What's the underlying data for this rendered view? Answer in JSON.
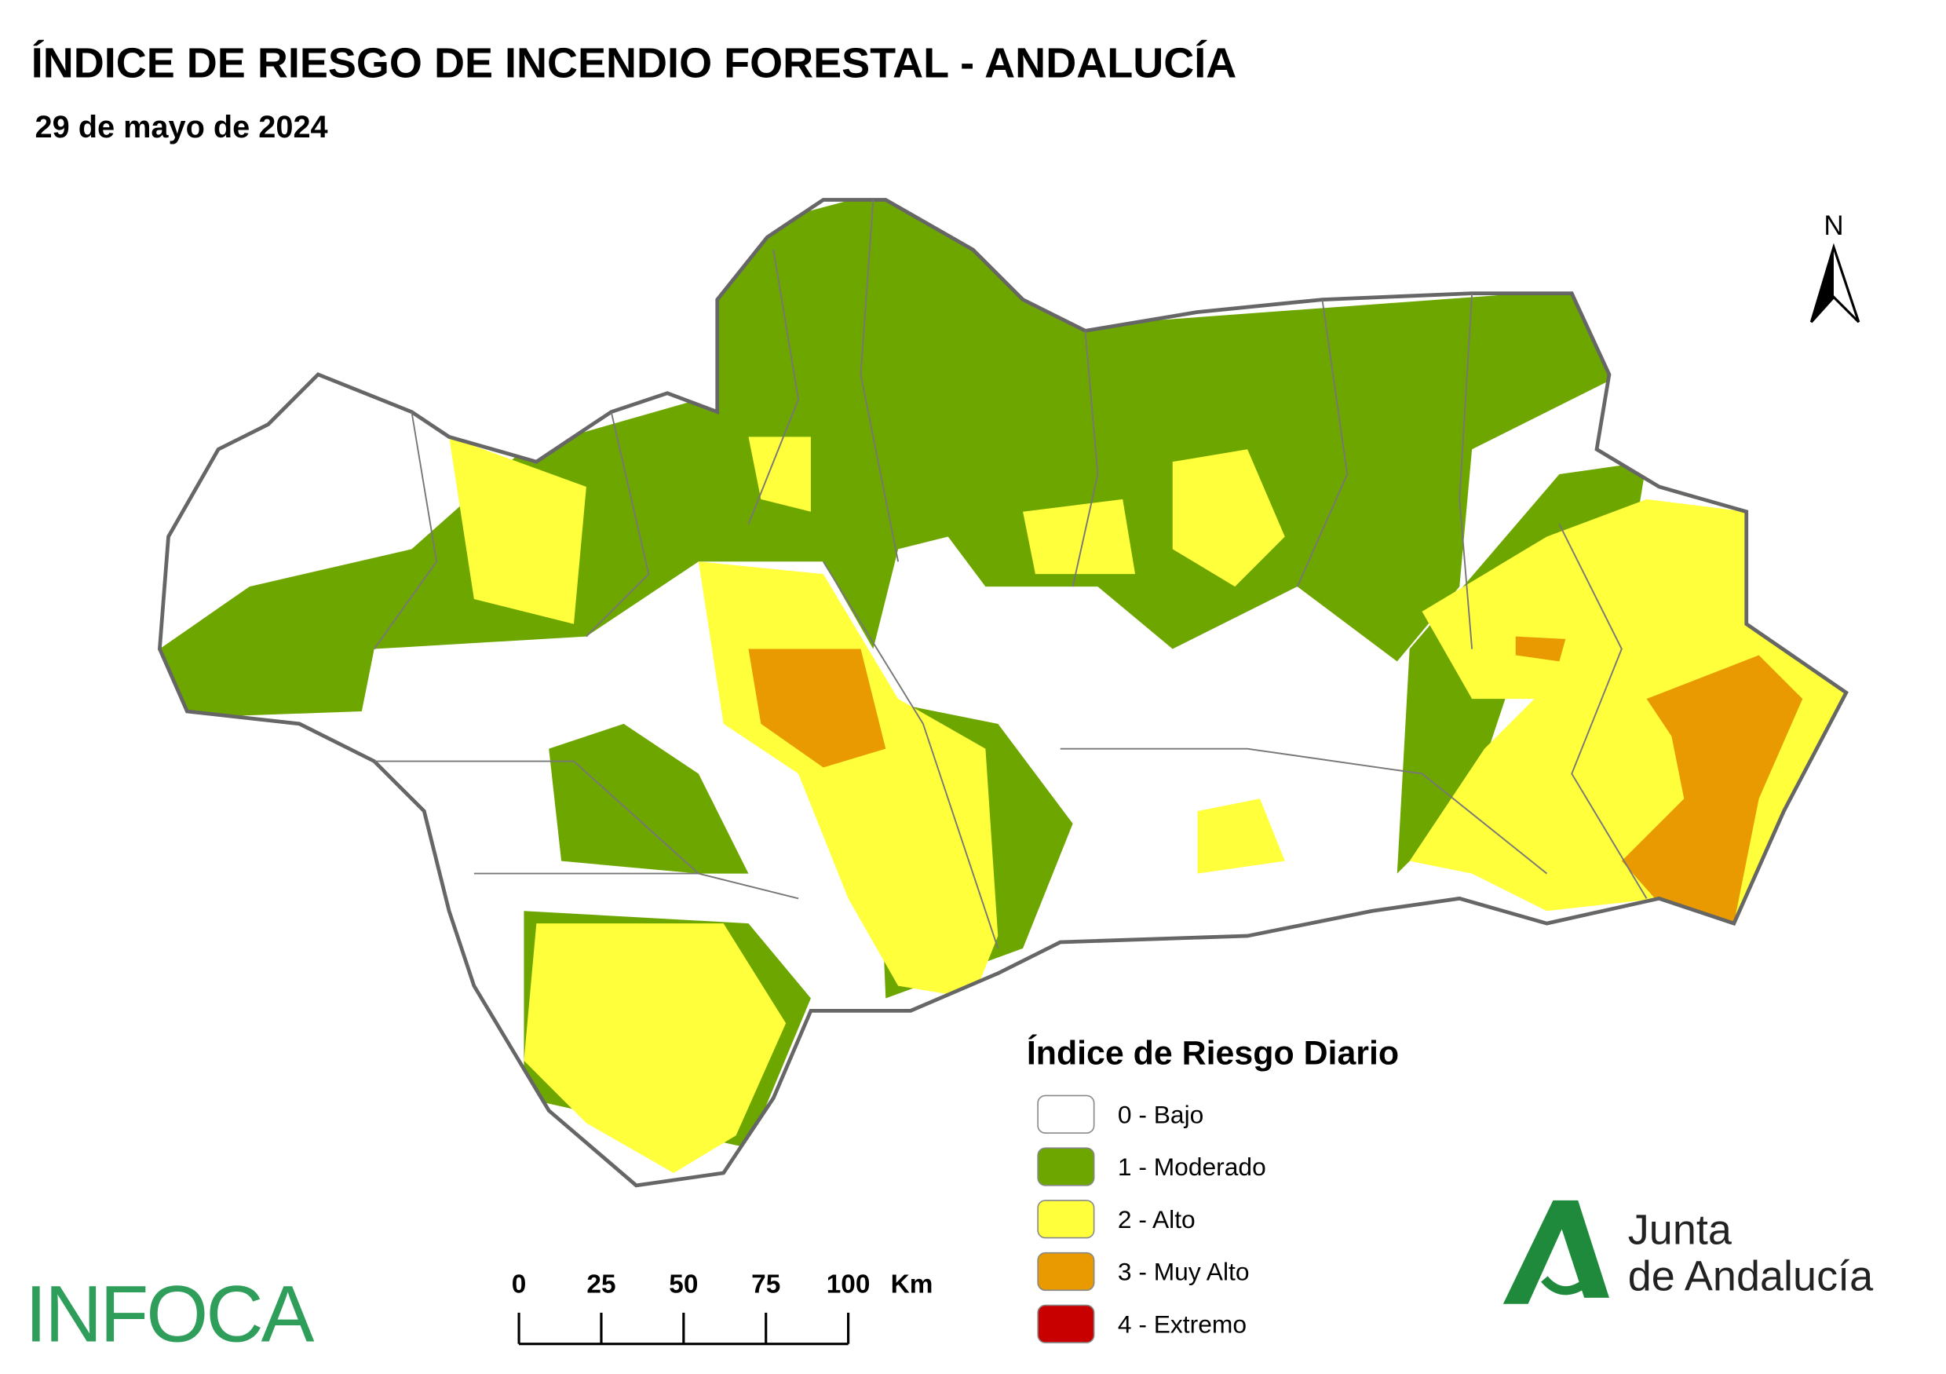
{
  "header": {
    "title": "ÍNDICE DE RIESGO DE INCENDIO FORESTAL - ANDALUCÍA",
    "subtitle": "29 de mayo de 2024"
  },
  "north_arrow": {
    "label": "N"
  },
  "legend": {
    "title": "Índice de Riesgo Diario",
    "items": [
      {
        "label": "0 - Bajo",
        "color": "#ffffff"
      },
      {
        "label": "1 - Moderado",
        "color": "#6ea600"
      },
      {
        "label": "2 - Alto",
        "color": "#ffff3c"
      },
      {
        "label": "3 - Muy Alto",
        "color": "#e89a00"
      },
      {
        "label": "4 - Extremo",
        "color": "#c80000"
      }
    ]
  },
  "scale_bar": {
    "ticks": [
      0,
      25,
      50,
      75,
      100
    ],
    "unit": "Km"
  },
  "logos": {
    "infoca": "INFOCA",
    "junta": [
      "Junta",
      "de Andalucía"
    ]
  }
}
